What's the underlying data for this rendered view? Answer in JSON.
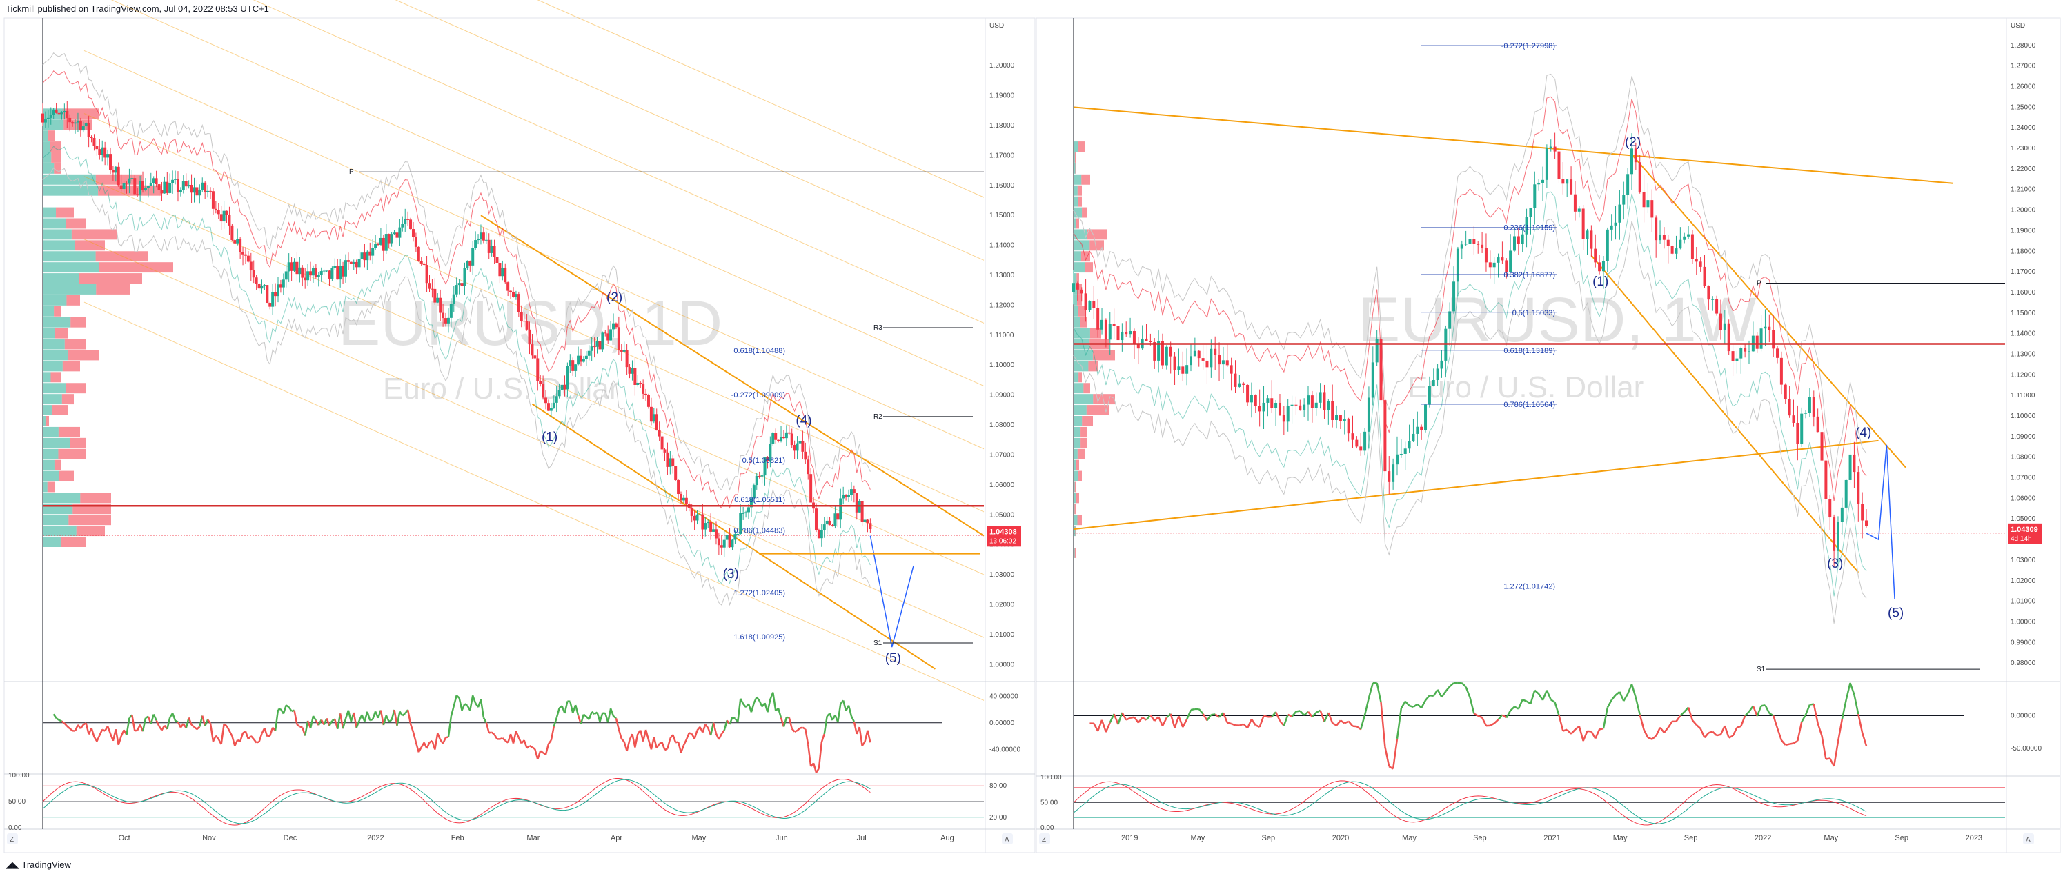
{
  "header": {
    "publisher": "Tickmill published on TradingView.com, Jul 04, 2022 08:53 UTC+1"
  },
  "footer": {
    "brand": "TradingView"
  },
  "colors": {
    "up": "#22ab94",
    "down": "#f23645",
    "fib": "#1e40af",
    "channel": "#f59e0b",
    "support": "#d32f2f",
    "wave": "#1a2a8c"
  },
  "chart_data": [
    {
      "type": "candlestick",
      "watermark": "EURUSD, 1D",
      "watermark_sub": "Euro / U.S. Dollar",
      "currency": "USD",
      "ylim": [
        0.995,
        1.215
      ],
      "yticks": [
        "1.20000",
        "1.19000",
        "1.18000",
        "1.17000",
        "1.16000",
        "1.15000",
        "1.14000",
        "1.13000",
        "1.12000",
        "1.11000",
        "1.10000",
        "1.09000",
        "1.08000",
        "1.07000",
        "1.06000",
        "1.05000",
        "1.04000",
        "1.03000",
        "1.02000",
        "1.01000",
        "1.00000"
      ],
      "xticks": [
        "Oct",
        "Nov",
        "Dec",
        "2022",
        "Feb",
        "Mar",
        "Apr",
        "May",
        "Jun",
        "Jul",
        "Aug"
      ],
      "last_price": "1.04308",
      "countdown": "13:06:02",
      "pivots": [
        {
          "label": "P",
          "value": 1.1645
        },
        {
          "label": "R3",
          "value": 1.1125
        },
        {
          "label": "R2",
          "value": 1.0828
        },
        {
          "label": "S1",
          "value": 1.0072
        }
      ],
      "fib_levels": [
        {
          "label": "0.618(1.10488)",
          "value": 1.10488
        },
        {
          "label": "-0.272(1.09009)",
          "value": 1.09009
        },
        {
          "label": "0.5(1.06821)",
          "value": 1.06821
        },
        {
          "label": "0.618(1.05511)",
          "value": 1.05511
        },
        {
          "label": "0.786(1.04483)",
          "value": 1.04483
        },
        {
          "label": "1.272(1.02405)",
          "value": 1.02405
        },
        {
          "label": "1.618(1.00925)",
          "value": 1.00925
        }
      ],
      "waves": [
        {
          "label": "(1)",
          "date": "2022-03-07",
          "value": 1.0806
        },
        {
          "label": "(2)",
          "date": "2022-03-31",
          "value": 1.1185
        },
        {
          "label": "(3)",
          "date": "2022-05-13",
          "value": 1.0349
        },
        {
          "label": "(4)",
          "date": "2022-06-09",
          "value": 1.0774
        },
        {
          "label": "(5)",
          "date": "2022-07-12",
          "value": 1.0058
        }
      ],
      "close_series": [
        [
          "2021-09-01",
          1.184
        ],
        [
          "2021-09-15",
          1.181
        ],
        [
          "2021-10-01",
          1.16
        ],
        [
          "2021-10-15",
          1.16
        ],
        [
          "2021-11-01",
          1.158
        ],
        [
          "2021-11-15",
          1.137
        ],
        [
          "2021-11-24",
          1.12
        ],
        [
          "2021-12-01",
          1.132
        ],
        [
          "2021-12-15",
          1.129
        ],
        [
          "2022-01-01",
          1.137
        ],
        [
          "2022-01-13",
          1.148
        ],
        [
          "2022-01-28",
          1.115
        ],
        [
          "2022-02-10",
          1.144
        ],
        [
          "2022-02-24",
          1.12
        ],
        [
          "2022-03-07",
          1.082
        ],
        [
          "2022-03-15",
          1.099
        ],
        [
          "2022-03-31",
          1.112
        ],
        [
          "2022-04-14",
          1.083
        ],
        [
          "2022-04-28",
          1.05
        ],
        [
          "2022-05-13",
          1.04
        ],
        [
          "2022-05-30",
          1.077
        ],
        [
          "2022-06-09",
          1.072
        ],
        [
          "2022-06-15",
          1.042
        ],
        [
          "2022-06-27",
          1.058
        ],
        [
          "2022-07-04",
          1.043
        ]
      ],
      "projection": [
        [
          "2022-07-04",
          1.043
        ],
        [
          "2022-07-12",
          1.0058
        ],
        [
          "2022-07-20",
          1.033
        ]
      ]
    },
    {
      "type": "candlestick",
      "watermark": "EURUSD, 1W",
      "watermark_sub": "Euro / U.S. Dollar",
      "currency": "USD",
      "ylim": [
        0.972,
        1.292
      ],
      "yticks": [
        "1.28000",
        "1.27000",
        "1.26000",
        "1.25000",
        "1.24000",
        "1.23000",
        "1.22000",
        "1.21000",
        "1.20000",
        "1.19000",
        "1.18000",
        "1.17000",
        "1.16000",
        "1.15000",
        "1.14000",
        "1.13000",
        "1.12000",
        "1.11000",
        "1.10000",
        "1.09000",
        "1.08000",
        "1.07000",
        "1.06000",
        "1.05000",
        "1.04000",
        "1.03000",
        "1.02000",
        "1.01000",
        "1.00000",
        "0.99000",
        "0.98000"
      ],
      "xticks": [
        "2019",
        "May",
        "Sep",
        "2020",
        "May",
        "Sep",
        "2021",
        "May",
        "Sep",
        "2022",
        "May",
        "Sep",
        "2023"
      ],
      "last_price": "1.04309",
      "countdown": "4d 14h",
      "pivots": [
        {
          "label": "P",
          "value": 1.1645
        },
        {
          "label": "S1",
          "value": 0.977
        }
      ],
      "fib_levels": [
        {
          "label": "-0.272(1.27998)",
          "value": 1.27998
        },
        {
          "label": "0.236(1.19159)",
          "value": 1.19159
        },
        {
          "label": "0.382(1.16877)",
          "value": 1.16877
        },
        {
          "label": "0.5(1.15033)",
          "value": 1.15033
        },
        {
          "label": "0.618(1.13189)",
          "value": 1.13189
        },
        {
          "label": "0.786(1.10564)",
          "value": 1.10564
        },
        {
          "label": "1.272(1.01742)",
          "value": 1.01742
        }
      ],
      "waves": [
        {
          "label": "(1)",
          "date": "2021-03-29",
          "value": 1.172
        },
        {
          "label": "(2)",
          "date": "2021-05-24",
          "value": 1.227
        },
        {
          "label": "(3)",
          "date": "2022-05-09",
          "value": 1.035
        },
        {
          "label": "(4)",
          "date": "2022-06-27",
          "value": 1.086
        },
        {
          "label": "(5)",
          "date": "2022-08-22",
          "value": 1.011
        }
      ],
      "close_series": [
        [
          "2018-10-01",
          1.16
        ],
        [
          "2018-12-01",
          1.14
        ],
        [
          "2019-02-01",
          1.135
        ],
        [
          "2019-04-01",
          1.125
        ],
        [
          "2019-06-01",
          1.13
        ],
        [
          "2019-08-01",
          1.11
        ],
        [
          "2019-10-01",
          1.1
        ],
        [
          "2019-12-01",
          1.11
        ],
        [
          "2020-02-15",
          1.082
        ],
        [
          "2020-03-09",
          1.14
        ],
        [
          "2020-03-23",
          1.07
        ],
        [
          "2020-05-15",
          1.09
        ],
        [
          "2020-07-01",
          1.13
        ],
        [
          "2020-08-01",
          1.185
        ],
        [
          "2020-10-15",
          1.17
        ],
        [
          "2021-01-04",
          1.23
        ],
        [
          "2021-03-29",
          1.172
        ],
        [
          "2021-05-24",
          1.225
        ],
        [
          "2021-07-15",
          1.18
        ],
        [
          "2021-09-01",
          1.185
        ],
        [
          "2021-11-15",
          1.13
        ],
        [
          "2022-01-15",
          1.14
        ],
        [
          "2022-03-07",
          1.09
        ],
        [
          "2022-03-31",
          1.11
        ],
        [
          "2022-05-09",
          1.035
        ],
        [
          "2022-06-06",
          1.076
        ],
        [
          "2022-07-04",
          1.043
        ]
      ],
      "projection": [
        [
          "2022-07-04",
          1.043
        ],
        [
          "2022-07-25",
          1.04
        ],
        [
          "2022-08-08",
          1.086
        ],
        [
          "2022-08-22",
          1.011
        ]
      ]
    }
  ],
  "rsi_left": {
    "yticks": [
      "40.00000",
      "0.00000",
      "-40.00000"
    ]
  },
  "rsi_right": {
    "yticks": [
      "0.00000",
      "-50.00000"
    ]
  },
  "stoch_left": {
    "yticks": [
      "100.00",
      "50.00",
      "0.00"
    ],
    "right_ticks": [
      "80.00",
      "20.00"
    ]
  },
  "stoch_right": {
    "yticks": [
      "100.00",
      "50.00",
      "0.00"
    ]
  },
  "axis_buttons": {
    "log": "Z",
    "auto": "A"
  }
}
